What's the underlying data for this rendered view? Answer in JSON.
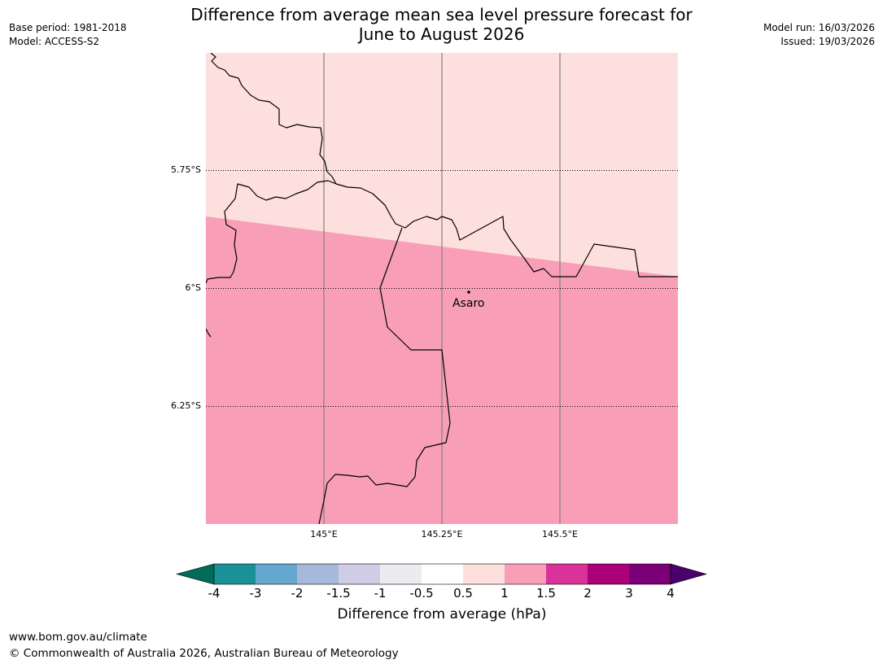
{
  "header": {
    "base_period": "Base period: 1981-2018",
    "model": "Model: ACCESS-S2",
    "title_line1": "Difference from average mean sea level pressure forecast for",
    "title_line2": "June to August 2026",
    "model_run": "Model run: 16/03/2026",
    "issued": "Issued: 19/03/2026"
  },
  "map": {
    "lat_labels": [
      "5.75°S",
      "6°S",
      "6.25°S"
    ],
    "lon_labels": [
      "145°E",
      "145.25°E",
      "145.5°E"
    ],
    "place": "Asaro",
    "fill_colors": {
      "upper": "#fddfdd",
      "lower": "#f89fb7"
    },
    "upper_band_hpa": "0.5 to 1",
    "lower_band_hpa": "1 to 1.5"
  },
  "colorbar": {
    "ticks": [
      "-4",
      "-3",
      "-2",
      "-1.5",
      "-1",
      "-0.5",
      "0.5",
      "1",
      "1.5",
      "2",
      "3",
      "4"
    ],
    "colors": [
      "#1a9196",
      "#66a7d0",
      "#a5b9da",
      "#cfcde6",
      "#ececf0",
      "#ffffff",
      "#fddfdd",
      "#f89fb7",
      "#d9339a",
      "#ac0079",
      "#7b0077"
    ],
    "extend_low_color": "#016c59",
    "extend_high_color": "#49006a",
    "label": "Difference from average (hPa)"
  },
  "footer": {
    "url": "www.bom.gov.au/climate",
    "copyright": "© Commonwealth of Australia 2026, Australian Bureau of Meteorology"
  }
}
